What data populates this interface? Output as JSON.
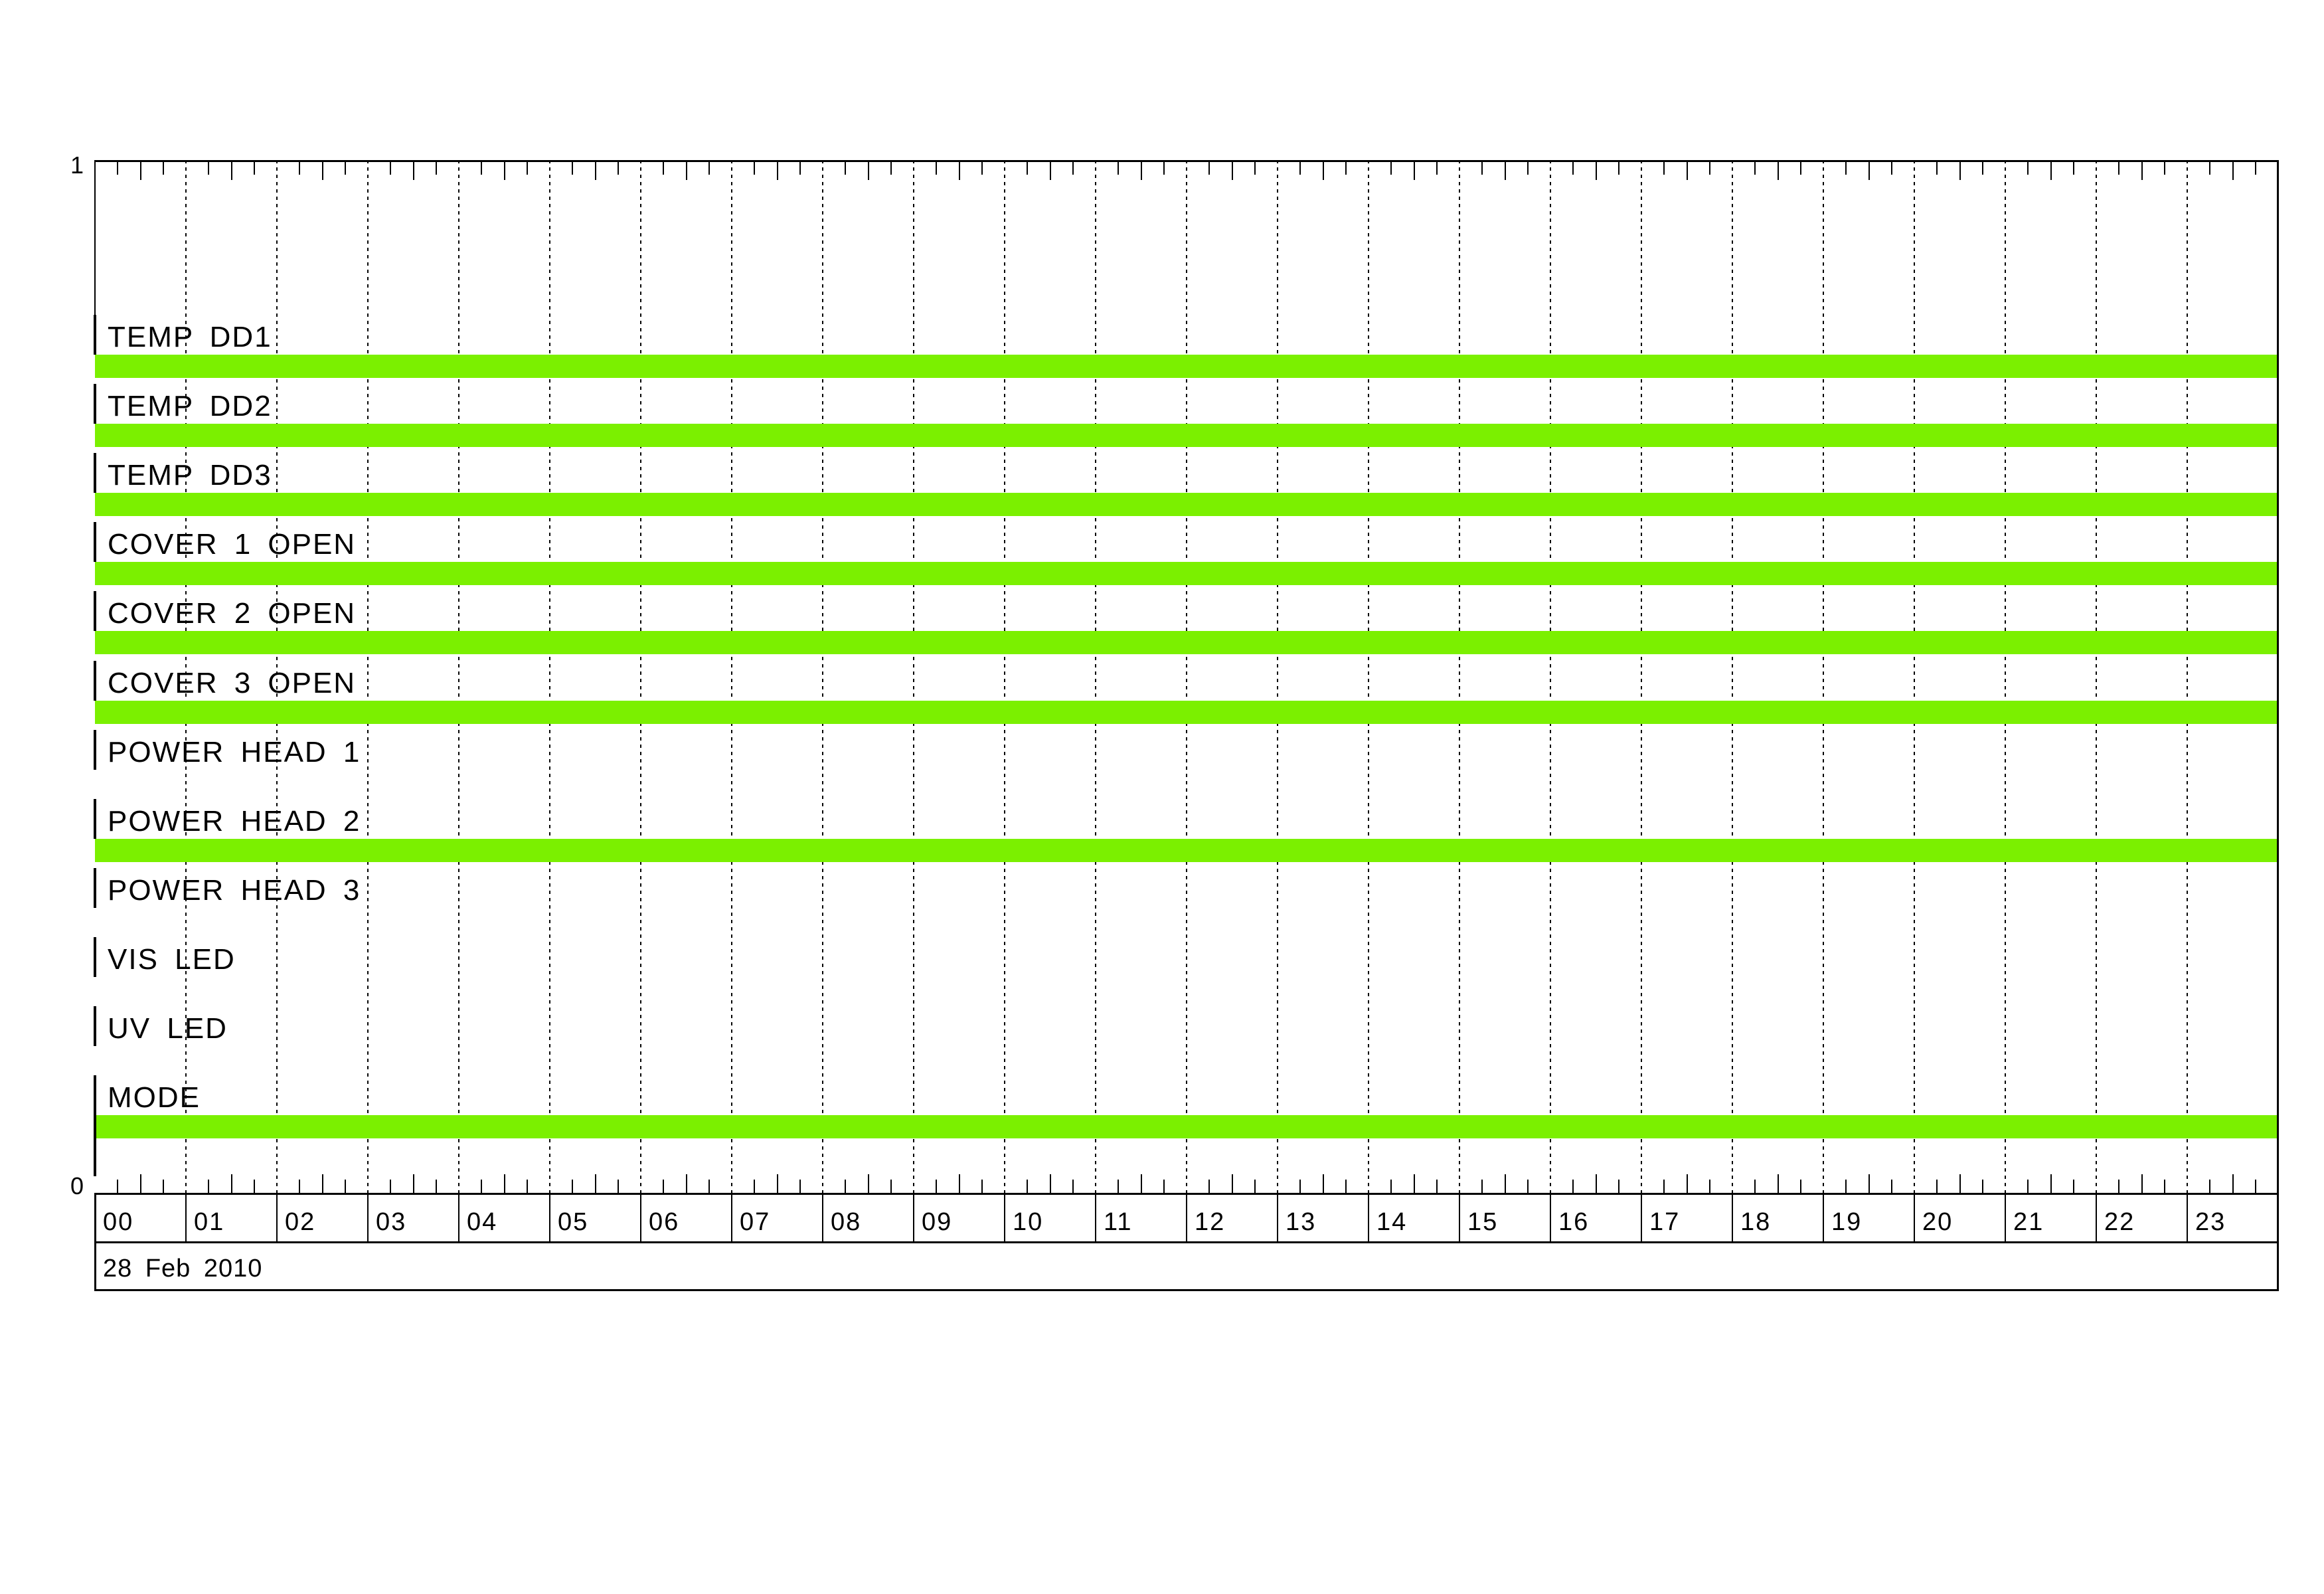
{
  "chart_data": {
    "type": "timeline",
    "title": "",
    "date_label": "28 Feb 2010",
    "x_axis": {
      "unit": "hour",
      "range": [
        0,
        24
      ],
      "hour_labels": [
        "00",
        "01",
        "02",
        "03",
        "04",
        "05",
        "06",
        "07",
        "08",
        "09",
        "10",
        "11",
        "12",
        "13",
        "14",
        "15",
        "16",
        "17",
        "18",
        "19",
        "20",
        "21",
        "22",
        "23"
      ],
      "minor_tick_minutes": 15,
      "gridlines_at_hours": true,
      "grid": "dashed-vertical"
    },
    "y_axis": {
      "top_label": "1",
      "bottom_label": "0"
    },
    "rows": [
      {
        "label": "TEMP DD1",
        "state": "on",
        "bar_start_hour": 0,
        "bar_end_hour": 24
      },
      {
        "label": "TEMP DD2",
        "state": "on",
        "bar_start_hour": 0,
        "bar_end_hour": 24
      },
      {
        "label": "TEMP DD3",
        "state": "on",
        "bar_start_hour": 0,
        "bar_end_hour": 24
      },
      {
        "label": "COVER 1 OPEN",
        "state": "on",
        "bar_start_hour": 0,
        "bar_end_hour": 24
      },
      {
        "label": "COVER 2 OPEN",
        "state": "on",
        "bar_start_hour": 0,
        "bar_end_hour": 24
      },
      {
        "label": "COVER 3 OPEN",
        "state": "on",
        "bar_start_hour": 0,
        "bar_end_hour": 24
      },
      {
        "label": "POWER HEAD 1",
        "state": "off",
        "bar_start_hour": null,
        "bar_end_hour": null
      },
      {
        "label": "POWER HEAD 2",
        "state": "on",
        "bar_start_hour": 0,
        "bar_end_hour": 24
      },
      {
        "label": "POWER HEAD 3",
        "state": "off",
        "bar_start_hour": null,
        "bar_end_hour": null
      },
      {
        "label": "VIS LED",
        "state": "off",
        "bar_start_hour": null,
        "bar_end_hour": null
      },
      {
        "label": "UV LED",
        "state": "off",
        "bar_start_hour": null,
        "bar_end_hour": null
      },
      {
        "label": "MODE",
        "state": "on",
        "bar_start_hour": 0,
        "bar_end_hour": 24
      }
    ],
    "colors": {
      "bar_on": "#7BF000",
      "axis": "#000000",
      "background": "#FFFFFF"
    }
  }
}
